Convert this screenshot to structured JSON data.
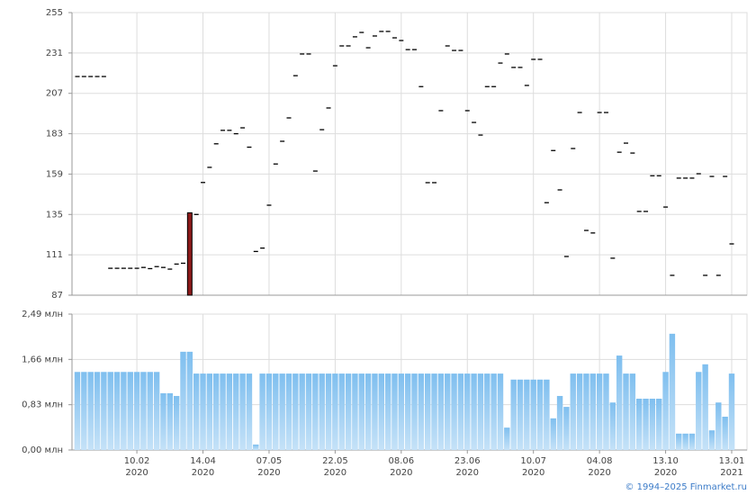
{
  "chart_data": [
    {
      "type": "candlestick",
      "open": [
        217,
        217,
        217,
        217,
        217,
        103,
        103,
        103,
        103,
        103,
        103.5,
        102.8,
        104,
        103.5,
        102.5,
        105.5,
        106,
        136,
        135,
        154,
        163,
        177,
        185,
        185,
        183,
        186.5,
        175,
        113,
        115,
        140.5,
        165,
        178.5,
        192.4,
        217.5,
        230.4,
        230.4,
        160.8,
        185.4,
        198.3,
        223.4,
        235.2,
        235.2,
        240.6,
        243.2,
        234.1,
        241.1,
        243.8,
        243.8,
        240,
        238.4,
        233,
        233,
        211,
        153.9,
        153.9,
        196.7,
        235.2,
        232.5,
        232.5,
        196.7,
        189.7,
        182.2,
        211,
        211,
        225,
        230.4,
        222.4,
        222.4,
        211.7,
        227.2,
        227.2,
        142,
        173,
        149.6,
        110,
        174.2,
        195.6,
        125.5,
        124,
        195.6,
        195.6,
        109,
        172,
        177.4,
        171.5,
        136.8,
        136.8,
        158,
        158,
        139.4,
        98.8,
        156.6,
        156.6,
        156.6,
        159.2,
        98.8,
        157.6,
        98.8,
        157.6,
        117.5
      ],
      "close": [
        217,
        217,
        217,
        217,
        217,
        103,
        103,
        103,
        103,
        103,
        103.5,
        102.8,
        104,
        103.5,
        102.5,
        105.5,
        106,
        87,
        135,
        154,
        163,
        177,
        185,
        185,
        183,
        186.5,
        175,
        113,
        115,
        140.5,
        165,
        178.5,
        192.4,
        217.5,
        230.4,
        230.4,
        160.8,
        185.4,
        198.3,
        223.4,
        235.2,
        235.2,
        240.6,
        243.2,
        234.1,
        241.1,
        243.8,
        243.8,
        240,
        238.4,
        233,
        233,
        211,
        153.9,
        153.9,
        196.7,
        235.2,
        232.5,
        232.5,
        196.7,
        189.7,
        182.2,
        211,
        211,
        225,
        230.4,
        222.4,
        222.4,
        211.7,
        227.2,
        227.2,
        142,
        173,
        149.6,
        110,
        174.2,
        195.6,
        125.5,
        124,
        195.6,
        195.6,
        109,
        172,
        177.4,
        171.5,
        136.8,
        136.8,
        158,
        158,
        139.4,
        98.8,
        156.6,
        156.6,
        156.6,
        159.2,
        98.8,
        157.6,
        98.8,
        157.6,
        117.5
      ],
      "down_color": "#8b1a1a",
      "ylim": [
        87,
        255
      ],
      "yticks": [
        87,
        111,
        135,
        159,
        183,
        207,
        231,
        255
      ],
      "grid": true
    },
    {
      "type": "bar",
      "categories": [
        null,
        null,
        null,
        null,
        null,
        null,
        null,
        null,
        null,
        "10.02\n2020",
        null,
        null,
        null,
        null,
        null,
        null,
        null,
        null,
        null,
        "14.04\n2020",
        null,
        null,
        null,
        null,
        null,
        null,
        null,
        null,
        null,
        "07.05\n2020",
        null,
        null,
        null,
        null,
        null,
        null,
        null,
        null,
        null,
        "22.05\n2020",
        null,
        null,
        null,
        null,
        null,
        null,
        null,
        null,
        null,
        "08.06\n2020",
        null,
        null,
        null,
        null,
        null,
        null,
        null,
        null,
        null,
        "23.06\n2020",
        null,
        null,
        null,
        null,
        null,
        null,
        null,
        null,
        null,
        "10.07\n2020",
        null,
        null,
        null,
        null,
        null,
        null,
        null,
        null,
        null,
        "04.08\n2020",
        null,
        null,
        null,
        null,
        null,
        null,
        null,
        null,
        null,
        "13.10\n2020",
        null,
        null,
        null,
        null,
        null,
        null,
        null,
        null,
        null,
        "13.01\n2021"
      ],
      "values": [
        1.43,
        1.43,
        1.43,
        1.43,
        1.43,
        1.43,
        1.43,
        1.43,
        1.43,
        1.43,
        1.43,
        1.43,
        1.43,
        1.04,
        1.04,
        0.99,
        1.8,
        1.8,
        1.4,
        1.4,
        1.4,
        1.4,
        1.4,
        1.4,
        1.4,
        1.4,
        1.4,
        0.1,
        1.4,
        1.4,
        1.4,
        1.4,
        1.4,
        1.4,
        1.4,
        1.4,
        1.4,
        1.4,
        1.4,
        1.4,
        1.4,
        1.4,
        1.4,
        1.4,
        1.4,
        1.4,
        1.4,
        1.4,
        1.4,
        1.4,
        1.4,
        1.4,
        1.4,
        1.4,
        1.4,
        1.4,
        1.4,
        1.4,
        1.4,
        1.4,
        1.4,
        1.4,
        1.4,
        1.4,
        1.4,
        0.41,
        1.29,
        1.29,
        1.29,
        1.29,
        1.29,
        1.29,
        0.58,
        0.99,
        0.79,
        1.4,
        1.4,
        1.4,
        1.4,
        1.4,
        1.4,
        0.87,
        1.73,
        1.4,
        1.4,
        0.94,
        0.94,
        0.94,
        0.94,
        1.43,
        2.13,
        0.3,
        0.3,
        0.3,
        1.43,
        1.57,
        0.36,
        0.87,
        0.61,
        1.4
      ],
      "color": "#7fbfef",
      "ylim": [
        0,
        2.49
      ],
      "yticks": [
        {
          "value": 0,
          "label": "0,00 млн"
        },
        {
          "value": 0.83,
          "label": "0,83 млн"
        },
        {
          "value": 1.66,
          "label": "1,66 млн"
        },
        {
          "value": 2.49,
          "label": "2,49 млн"
        }
      ],
      "grid": true
    }
  ],
  "credit": "© 1994–2025 Finmarket.ru"
}
